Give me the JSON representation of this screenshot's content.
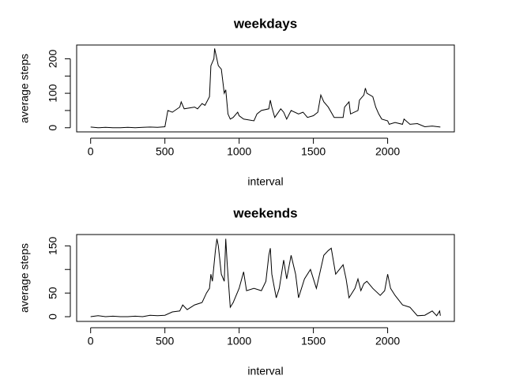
{
  "chart_data": [
    {
      "type": "line",
      "title": "weekdays",
      "xlabel": "interval",
      "ylabel": "average steps",
      "xlim": [
        -94.2,
        2449.2
      ],
      "xticks": [
        0,
        500,
        1000,
        1500,
        2000
      ],
      "ylim": [
        -12,
        240
      ],
      "yticks": [
        0,
        100,
        200
      ],
      "yminor": [
        50,
        150
      ],
      "color": "#000000",
      "x": [
        0,
        50,
        100,
        150,
        200,
        250,
        300,
        350,
        400,
        450,
        500,
        520,
        550,
        600,
        610,
        630,
        700,
        720,
        750,
        770,
        800,
        810,
        830,
        835,
        845,
        860,
        880,
        900,
        910,
        925,
        940,
        960,
        990,
        1000,
        1030,
        1100,
        1120,
        1150,
        1200,
        1210,
        1220,
        1240,
        1280,
        1300,
        1320,
        1350,
        1400,
        1430,
        1460,
        1500,
        1530,
        1550,
        1570,
        1600,
        1640,
        1700,
        1710,
        1740,
        1750,
        1800,
        1810,
        1840,
        1850,
        1860,
        1900,
        1920,
        1940,
        1960,
        2000,
        2010,
        2050,
        2100,
        2110,
        2150,
        2200,
        2250,
        2300,
        2355
      ],
      "values": [
        2,
        0,
        1,
        0,
        0,
        1,
        0,
        1,
        2,
        1,
        3,
        50,
        45,
        60,
        75,
        55,
        60,
        55,
        70,
        65,
        90,
        180,
        200,
        230,
        210,
        180,
        170,
        100,
        110,
        40,
        25,
        30,
        45,
        35,
        25,
        20,
        40,
        50,
        55,
        80,
        60,
        30,
        55,
        45,
        25,
        50,
        40,
        45,
        30,
        35,
        45,
        95,
        75,
        60,
        30,
        30,
        60,
        75,
        40,
        50,
        80,
        95,
        115,
        100,
        90,
        60,
        40,
        25,
        20,
        10,
        15,
        10,
        25,
        10,
        12,
        3,
        5,
        2
      ]
    },
    {
      "type": "line",
      "title": "weekends",
      "xlabel": "interval",
      "ylabel": "average steps",
      "xlim": [
        -94.2,
        2449.2
      ],
      "xticks": [
        0,
        500,
        1000,
        1500,
        2000
      ],
      "ylim": [
        -10,
        174
      ],
      "yticks": [
        0,
        50,
        150
      ],
      "yminor": [
        100
      ],
      "color": "#000000",
      "x": [
        0,
        50,
        100,
        150,
        200,
        250,
        300,
        350,
        400,
        450,
        500,
        550,
        600,
        620,
        650,
        700,
        750,
        780,
        800,
        810,
        820,
        840,
        850,
        860,
        880,
        900,
        910,
        920,
        940,
        960,
        1000,
        1030,
        1050,
        1100,
        1150,
        1180,
        1200,
        1210,
        1220,
        1250,
        1270,
        1300,
        1320,
        1350,
        1380,
        1400,
        1440,
        1480,
        1520,
        1570,
        1600,
        1620,
        1650,
        1700,
        1720,
        1740,
        1780,
        1800,
        1820,
        1840,
        1860,
        1900,
        1950,
        1980,
        2000,
        2020,
        2050,
        2100,
        2150,
        2200,
        2250,
        2300,
        2330,
        2350,
        2355
      ],
      "values": [
        0,
        2,
        0,
        1,
        0,
        0,
        1,
        0,
        3,
        2,
        3,
        10,
        12,
        25,
        15,
        25,
        30,
        50,
        60,
        90,
        75,
        140,
        165,
        150,
        90,
        75,
        165,
        110,
        20,
        30,
        60,
        95,
        55,
        60,
        55,
        75,
        130,
        145,
        90,
        40,
        60,
        120,
        80,
        130,
        90,
        40,
        80,
        100,
        60,
        130,
        140,
        145,
        90,
        110,
        80,
        40,
        60,
        80,
        55,
        70,
        75,
        60,
        45,
        55,
        90,
        60,
        45,
        25,
        20,
        2,
        3,
        12,
        2,
        12,
        2
      ]
    }
  ]
}
